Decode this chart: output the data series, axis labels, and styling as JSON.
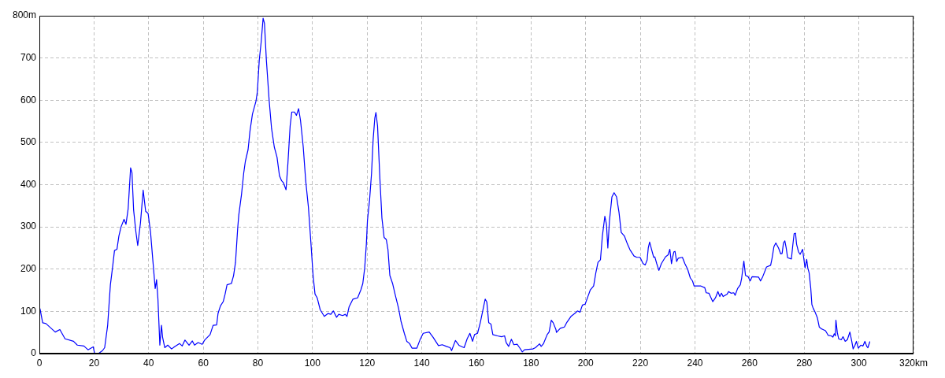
{
  "chart_data": {
    "type": "line",
    "color": "#0000ff",
    "grid": true,
    "xlim": [
      0,
      320
    ],
    "xticks": [
      0,
      20,
      40,
      60,
      80,
      100,
      120,
      140,
      160,
      180,
      200,
      220,
      240,
      260,
      280,
      300,
      {
        "value": 320,
        "label": "320km"
      }
    ],
    "ylim": [
      0,
      800
    ],
    "yticks": [
      0,
      100,
      200,
      300,
      400,
      500,
      600,
      700,
      {
        "value": 800,
        "label": "800m"
      }
    ],
    "x": [
      0,
      0.3,
      1.2,
      2.4,
      5.8,
      7.5,
      9.4,
      12.5,
      13.9,
      16.3,
      17.8,
      19.7,
      20.2,
      21.6,
      23.1,
      23.9,
      25,
      25.5,
      26,
      26.9,
      27.5,
      28.4,
      29.1,
      29.9,
      31,
      31.7,
      32.5,
      33.4,
      33.9,
      34.5,
      35.3,
      36,
      37,
      38,
      38.9,
      39.8,
      40.7,
      41.6,
      42.4,
      42.9,
      43.4,
      44.1,
      44.7,
      45.1,
      45.9,
      47,
      48.4,
      49.4,
      51.3,
      52.3,
      53.3,
      54.8,
      56,
      56.8,
      58.1,
      59.6,
      60.5,
      62.5,
      63.6,
      64.9,
      65.4,
      66.3,
      67.3,
      68,
      68.7,
      70.3,
      71.1,
      71.8,
      72.6,
      73,
      74,
      74.8,
      75.4,
      76.4,
      77.1,
      78,
      79.3,
      79.8,
      80.5,
      81.2,
      81.9,
      82.4,
      83.1,
      84.1,
      85,
      86,
      87,
      87.9,
      88.7,
      89.3,
      90.3,
      91,
      91.8,
      92.4,
      93.4,
      94.1,
      94.9,
      95.6,
      96.6,
      97.5,
      98.5,
      99.5,
      100.2,
      100.9,
      101.7,
      102.8,
      104.3,
      105.7,
      106.7,
      107.6,
      108.8,
      109.6,
      111,
      112,
      112.6,
      113.4,
      114.8,
      116.5,
      117.7,
      118.4,
      119.1,
      119.7,
      120.1,
      120.9,
      121.6,
      122.2,
      122.8,
      123.2,
      123.8,
      124.2,
      124.7,
      125.4,
      126.2,
      127,
      127.6,
      128.3,
      129.3,
      130.2,
      131.5,
      132.4,
      133.6,
      134.5,
      135.5,
      136.4,
      138.2,
      139.3,
      140.5,
      142.7,
      144.1,
      146.1,
      147.5,
      149,
      150.4,
      150.9,
      152.3,
      153.7,
      155.5,
      156.6,
      157.6,
      158.6,
      159.3,
      160.4,
      161.4,
      162.4,
      163.2,
      163.8,
      164.5,
      165.3,
      166,
      167.7,
      169.2,
      170.3,
      170.9,
      171.8,
      172.8,
      173.7,
      174.9,
      175.8,
      176.8,
      177.6,
      180.6,
      181.6,
      183.1,
      183.7,
      184.5,
      185.9,
      186.6,
      187.4,
      188.1,
      189.1,
      189.3,
      190.7,
      192.2,
      193.1,
      194.6,
      196,
      197,
      197.9,
      198.8,
      199.8,
      200.8,
      201.7,
      202.9,
      203.7,
      204.5,
      205.4,
      206.1,
      207,
      207.6,
      208.1,
      208.7,
      209.6,
      210.4,
      211.3,
      212.2,
      213,
      214.2,
      215.3,
      216.2,
      217.7,
      218.7,
      219.9,
      221,
      221.8,
      222.5,
      222.9,
      223.4,
      224.1,
      224.9,
      225.3,
      226,
      226.8,
      227.7,
      229.2,
      230.2,
      230.8,
      231.4,
      231.8,
      232.3,
      232.7,
      233.3,
      233.9,
      235.4,
      236.3,
      237.3,
      238.3,
      239.1,
      239.7,
      242.2,
      243.6,
      244.1,
      245.1,
      246.5,
      247.5,
      248.4,
      249.1,
      249.7,
      250.3,
      251.8,
      252.3,
      253.2,
      254.2,
      254.7,
      255.6,
      256.6,
      257.1,
      257.5,
      257.9,
      258.5,
      259.5,
      260.2,
      260.9,
      263.3,
      264,
      264.8,
      266.2,
      267.7,
      268.2,
      268.9,
      269.6,
      270.6,
      271.4,
      271.9,
      272.4,
      272.9,
      273.4,
      273.9,
      275.3,
      275.8,
      276.3,
      276.8,
      277.2,
      277.9,
      278.5,
      279.4,
      279.9,
      280.3,
      280.9,
      281.3,
      281.8,
      282.4,
      282.8,
      283.3,
      284,
      284.8,
      285.5,
      286.2,
      286.9,
      287.8,
      288.8,
      289.9,
      290.5,
      291,
      291.4,
      291.6,
      292.1,
      292.6,
      293.6,
      294.2,
      295,
      295.8,
      296.7,
      297.4,
      297.9,
      298.6,
      299.1,
      299.8,
      300.7,
      301.5,
      302.2,
      302.9,
      303.3,
      304
    ],
    "values": [
      110,
      104,
      73,
      71,
      51,
      57,
      35,
      29,
      20,
      18,
      9,
      16,
      1,
      0,
      7,
      14,
      67,
      116,
      163,
      210,
      244,
      247,
      278,
      300,
      318,
      306,
      343,
      440,
      428,
      340,
      290,
      256,
      309,
      387,
      337,
      332,
      287,
      216,
      154,
      175,
      129,
      20,
      67,
      39,
      14,
      20,
      11,
      16,
      24,
      18,
      32,
      20,
      30,
      20,
      26,
      22,
      32,
      45,
      67,
      68,
      95,
      113,
      123,
      141,
      163,
      166,
      185,
      216,
      297,
      328,
      377,
      427,
      455,
      483,
      527,
      567,
      598,
      620,
      695,
      738,
      794,
      782,
      695,
      601,
      533,
      489,
      465,
      421,
      409,
      405,
      388,
      452,
      539,
      572,
      572,
      564,
      580,
      552,
      489,
      409,
      346,
      253,
      185,
      141,
      132,
      104,
      88,
      95,
      93,
      101,
      86,
      93,
      90,
      93,
      88,
      111,
      129,
      132,
      151,
      166,
      203,
      259,
      315,
      365,
      427,
      508,
      558,
      571,
      539,
      480,
      409,
      321,
      275,
      270,
      247,
      185,
      166,
      141,
      107,
      76,
      48,
      29,
      24,
      13,
      13,
      32,
      48,
      51,
      39,
      19,
      21,
      17,
      14,
      7,
      31,
      19,
      14,
      35,
      48,
      29,
      45,
      48,
      73,
      104,
      129,
      122,
      73,
      70,
      45,
      42,
      40,
      42,
      26,
      17,
      34,
      21,
      22,
      14,
      4,
      9,
      11,
      14,
      23,
      17,
      23,
      45,
      51,
      79,
      73,
      57,
      50,
      60,
      63,
      74,
      88,
      95,
      101,
      98,
      115,
      117,
      135,
      151,
      160,
      191,
      216,
      222,
      278,
      325,
      306,
      250,
      315,
      371,
      381,
      371,
      334,
      287,
      278,
      259,
      246,
      231,
      228,
      228,
      213,
      210,
      222,
      250,
      264,
      247,
      228,
      229,
      213,
      197,
      213,
      229,
      234,
      247,
      213,
      228,
      241,
      242,
      218,
      226,
      228,
      213,
      200,
      179,
      172,
      160,
      160,
      156,
      144,
      143,
      123,
      132,
      147,
      135,
      143,
      135,
      141,
      147,
      143,
      144,
      138,
      154,
      163,
      179,
      200,
      219,
      185,
      182,
      172,
      182,
      181,
      172,
      182,
      205,
      209,
      225,
      253,
      262,
      250,
      236,
      237,
      262,
      267,
      250,
      227,
      224,
      256,
      284,
      285,
      259,
      241,
      235,
      247,
      222,
      203,
      223,
      203,
      191,
      154,
      116,
      107,
      98,
      85,
      63,
      59,
      57,
      54,
      43,
      42,
      39,
      47,
      42,
      79,
      50,
      35,
      33,
      40,
      29,
      33,
      51,
      29,
      11,
      20,
      29,
      13,
      20,
      18,
      29,
      17,
      14,
      28
    ]
  }
}
